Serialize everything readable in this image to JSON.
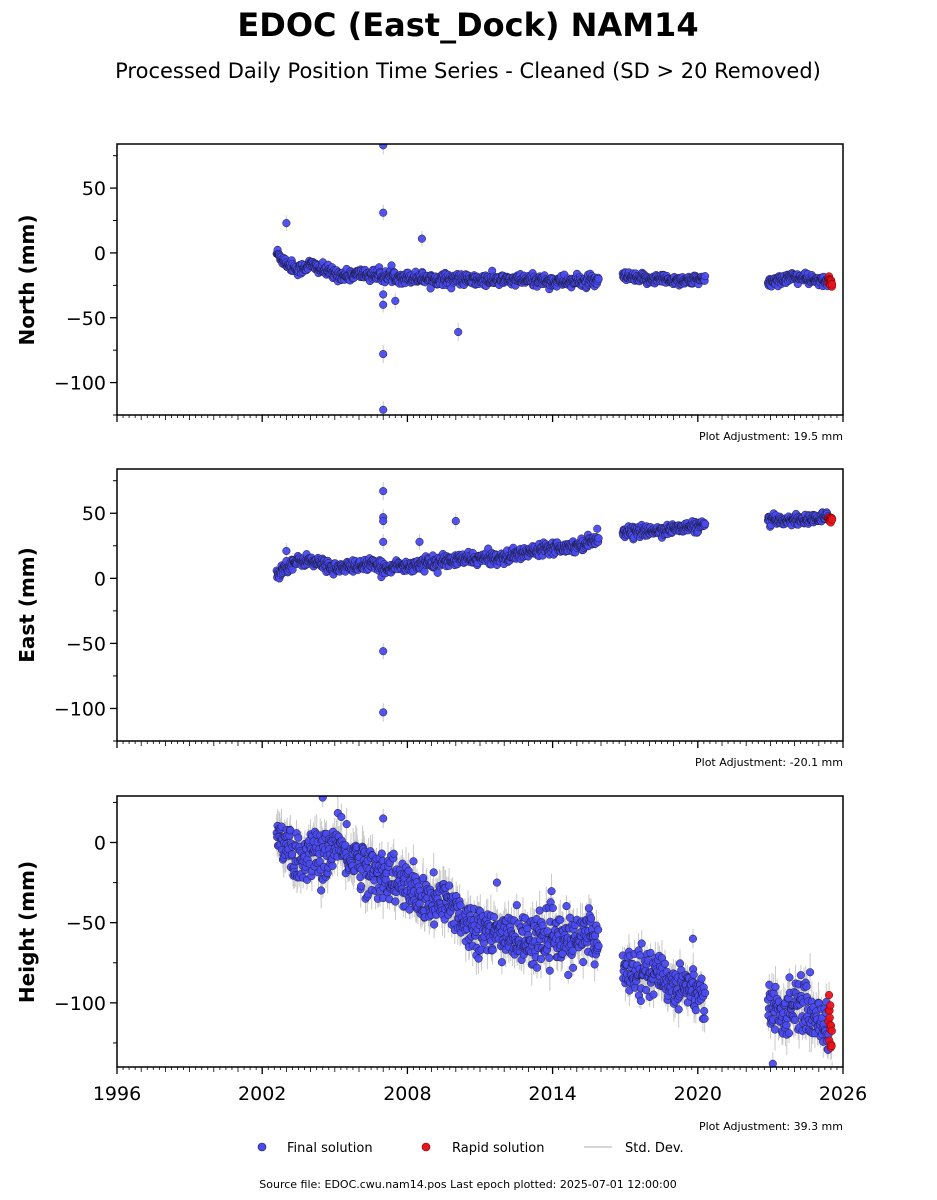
{
  "title": "EDOC (East_Dock) NAM14",
  "subtitle": "Processed Daily Position Time Series - Cleaned (SD > 20 Removed)",
  "footer": "Source file: EDOC.cwu.nam14.pos  Last epoch plotted: 2025-07-01 12:00:00",
  "legend": {
    "final": "Final solution",
    "rapid": "Rapid solution",
    "std": "Std. Dev."
  },
  "colors": {
    "final": "#4a4af0",
    "rapid": "#e8141e",
    "stddev": "#c8c8c8",
    "marker_edge": "#1a1a3a"
  },
  "x_ticks": [
    "1996",
    "2002",
    "2008",
    "2014",
    "2020",
    "2026"
  ],
  "chart_data": [
    {
      "type": "scatter",
      "ylabel": "North (mm)",
      "adjustment": "Plot Adjustment: 19.5 mm",
      "xlim": [
        1996,
        2026
      ],
      "ylim": [
        -125,
        84
      ],
      "yticks": [
        50,
        0,
        -50,
        -100
      ],
      "ytick_labels": [
        "50",
        "0",
        "−50",
        "−100"
      ],
      "segments": [
        {
          "x": [
            2002.6,
            2003.0,
            2003.5,
            2004.0,
            2004.5,
            2005.0,
            2005.5,
            2006.0,
            2006.5,
            2007.0,
            2007.5,
            2008.0,
            2008.5,
            2009.0,
            2009.5,
            2010.0,
            2010.5,
            2011.0,
            2011.5,
            2012.0,
            2012.5,
            2013.0,
            2013.5,
            2014.0,
            2014.5,
            2015.0,
            2015.5,
            2015.9
          ],
          "y": [
            0,
            -8,
            -13,
            -9,
            -13,
            -16,
            -18,
            -16,
            -17,
            -18,
            -18,
            -19,
            -19,
            -20,
            -20,
            -20,
            -21,
            -21,
            -21,
            -21,
            -21,
            -21,
            -21,
            -22,
            -22,
            -22,
            -22,
            -22
          ],
          "spread": 4
        },
        {
          "x": [
            2016.9,
            2017.5,
            2018.0,
            2018.5,
            2019.0,
            2019.5,
            2020.0,
            2020.3
          ],
          "y": [
            -18,
            -20,
            -20,
            -20,
            -21,
            -21,
            -21,
            -21
          ],
          "spread": 3.5
        },
        {
          "x": [
            2022.9,
            2023.5,
            2024.0,
            2024.5,
            2025.0,
            2025.4
          ],
          "y": [
            -23,
            -20,
            -18,
            -20,
            -22,
            -22
          ],
          "spread": 3.5
        }
      ],
      "outliers": [
        [
          2003.0,
          23
        ],
        [
          2007.0,
          83
        ],
        [
          2007.0,
          31
        ],
        [
          2007.0,
          -32
        ],
        [
          2007.0,
          -40
        ],
        [
          2007.0,
          -78
        ],
        [
          2007.0,
          -121
        ],
        [
          2007.5,
          -37
        ],
        [
          2008.6,
          11
        ],
        [
          2010.1,
          -61
        ]
      ],
      "rapid": {
        "x": [
          2025.4,
          2025.55
        ],
        "y": [
          -21,
          -24
        ],
        "spread": 1.5
      }
    },
    {
      "type": "scatter",
      "ylabel": "East (mm)",
      "adjustment": "Plot Adjustment: -20.1 mm",
      "xlim": [
        1996,
        2026
      ],
      "ylim": [
        -125,
        84
      ],
      "yticks": [
        50,
        0,
        -50,
        -100
      ],
      "ytick_labels": [
        "50",
        "0",
        "−50",
        "−100"
      ],
      "segments": [
        {
          "x": [
            2002.6,
            2002.9,
            2003.3,
            2003.8,
            2004.5,
            2005.0,
            2005.5,
            2006.0,
            2006.5,
            2007.0,
            2007.5,
            2008.0,
            2008.5,
            2009.0,
            2009.5,
            2010.0,
            2010.5,
            2011.0,
            2011.5,
            2012.0,
            2012.5,
            2013.0,
            2013.5,
            2014.0,
            2014.5,
            2015.0,
            2015.5,
            2015.9
          ],
          "y": [
            2,
            8,
            12,
            14,
            11,
            8,
            8,
            10,
            11,
            7,
            10,
            9,
            11,
            12,
            13,
            14,
            15,
            15,
            16,
            16,
            18,
            20,
            23,
            24,
            24,
            25,
            28,
            31
          ],
          "spread": 4
        },
        {
          "x": [
            2016.9,
            2017.5,
            2018.0,
            2018.5,
            2019.0,
            2019.5,
            2020.0,
            2020.3
          ],
          "y": [
            36,
            36,
            36,
            37,
            38,
            39,
            40,
            41
          ],
          "spread": 3.5
        },
        {
          "x": [
            2022.9,
            2023.5,
            2024.0,
            2024.5,
            2025.0,
            2025.4
          ],
          "y": [
            44,
            45,
            45,
            45,
            46,
            47
          ],
          "spread": 3.5
        }
      ],
      "outliers": [
        [
          2003.0,
          21
        ],
        [
          2007.0,
          67
        ],
        [
          2007.0,
          47
        ],
        [
          2007.0,
          44
        ],
        [
          2007.0,
          28
        ],
        [
          2007.0,
          -56
        ],
        [
          2007.0,
          -103
        ],
        [
          2008.5,
          28
        ],
        [
          2010.0,
          44
        ]
      ],
      "rapid": {
        "x": [
          2025.4,
          2025.55
        ],
        "y": [
          47,
          45
        ],
        "spread": 1.5
      }
    },
    {
      "type": "scatter",
      "ylabel": "Height (mm)",
      "adjustment": "Plot Adjustment: 39.3 mm",
      "xlim": [
        1996,
        2026
      ],
      "ylim": [
        -140,
        29
      ],
      "yticks": [
        0,
        -50,
        -100
      ],
      "ytick_labels": [
        "0",
        "−50",
        "−100"
      ],
      "segments": [
        {
          "x": [
            2002.6,
            2003.0,
            2003.5,
            2004.0,
            2004.5,
            2005.0,
            2005.5,
            2006.0,
            2006.5,
            2007.0,
            2007.5,
            2008.0,
            2008.5,
            2009.0,
            2009.5,
            2010.0,
            2010.5,
            2011.0,
            2011.5,
            2012.0,
            2012.5,
            2013.0,
            2013.5,
            2014.0,
            2014.5,
            2015.0,
            2015.5,
            2015.9
          ],
          "y": [
            5,
            0,
            -12,
            -6,
            -10,
            -2,
            -8,
            -10,
            -20,
            -18,
            -24,
            -28,
            -35,
            -38,
            -38,
            -40,
            -52,
            -52,
            -60,
            -55,
            -60,
            -62,
            -58,
            -60,
            -62,
            -62,
            -55,
            -65
          ],
          "spread": 14
        },
        {
          "x": [
            2016.9,
            2017.5,
            2018.0,
            2018.5,
            2019.0,
            2019.5,
            2020.0,
            2020.3
          ],
          "y": [
            -80,
            -78,
            -82,
            -82,
            -90,
            -88,
            -92,
            -100
          ],
          "spread": 12
        },
        {
          "x": [
            2022.9,
            2023.5,
            2024.0,
            2024.5,
            2025.0,
            2025.4
          ],
          "y": [
            -100,
            -110,
            -97,
            -105,
            -110,
            -118
          ],
          "spread": 14
        }
      ],
      "outliers": [
        [
          2004.5,
          28
        ],
        [
          2007.0,
          15
        ],
        [
          2011.7,
          -25
        ],
        [
          2019.8,
          -60
        ],
        [
          2023.1,
          -138
        ]
      ],
      "rapid": {
        "x": [
          2025.4,
          2025.55
        ],
        "y": [
          -105,
          -130
        ],
        "spread": 8
      }
    }
  ]
}
